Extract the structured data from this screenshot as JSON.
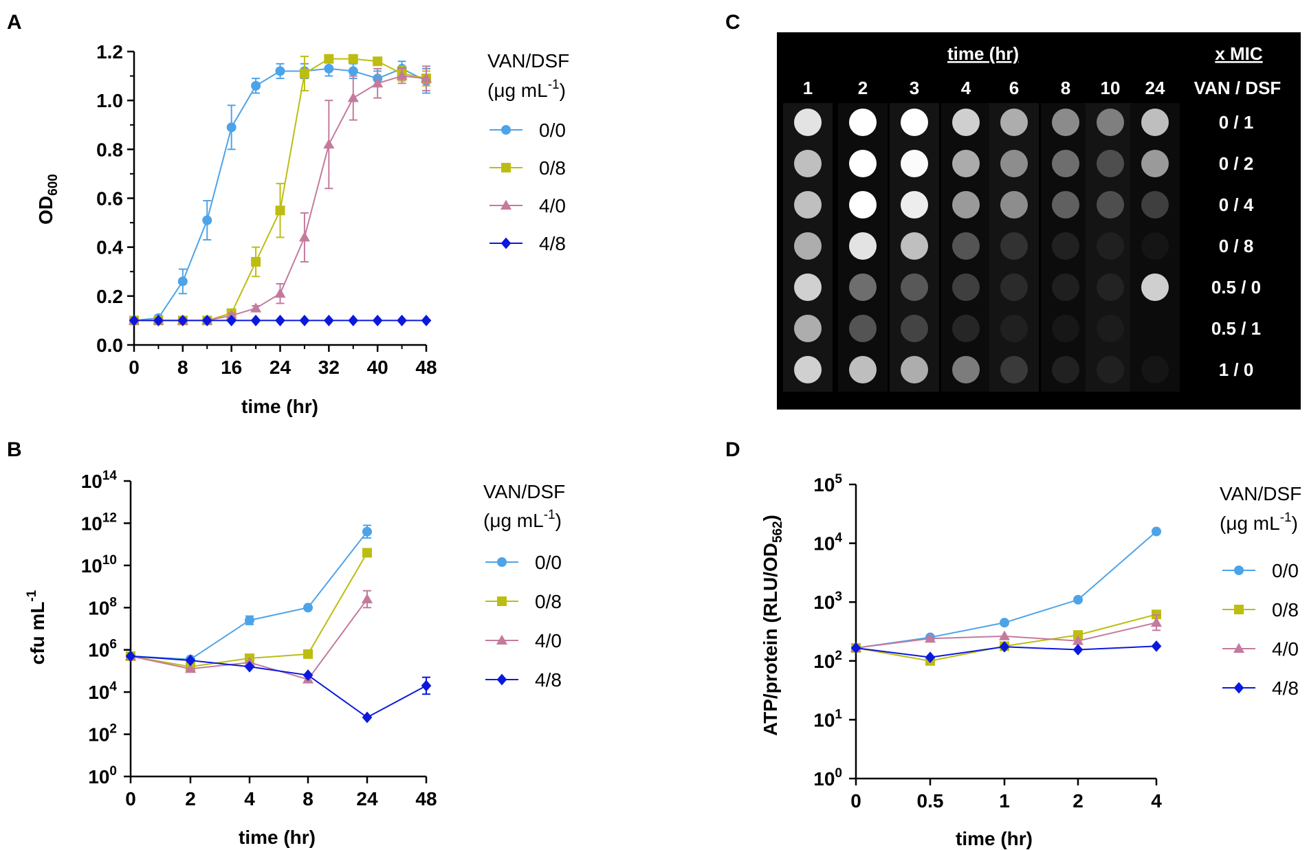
{
  "colors": {
    "c00": "#4da3e8",
    "c08": "#bdbd11",
    "c40": "#c47a9d",
    "c48": "#0b18dd"
  },
  "legend": {
    "title": "VAN/DSF",
    "unit_prefix": "(μg mL",
    "unit_exp": "-1",
    "unit_suffix": ")",
    "series_names": [
      "0/0",
      "0/8",
      "4/0",
      "4/8"
    ]
  },
  "panels": {
    "A": {
      "letter": "A",
      "ylabel_main": "OD",
      "ylabel_sub": "600",
      "xlabel": "time (hr)"
    },
    "B": {
      "letter": "B",
      "ylabel_main": "cfu mL",
      "ylabel_sup": "-1",
      "xlabel": "time (hr)"
    },
    "C": {
      "letter": "C"
    },
    "D": {
      "letter": "D",
      "ylabel_main": "ATP/protein (RLU/OD",
      "ylabel_sub": "562",
      "ylabel_end": ")",
      "xlabel": "time (hr)"
    }
  },
  "spot_assay": {
    "time_header": "time (hr)",
    "mic_header": "x MIC",
    "ratio_header": "VAN / DSF",
    "times": [
      "1",
      "2",
      "3",
      "4",
      "6",
      "8",
      "10",
      "24"
    ],
    "rows": [
      {
        "label": "0 / 1",
        "density": [
          0.85,
          1.0,
          1.0,
          0.8,
          0.7,
          0.6,
          0.55,
          0.75
        ]
      },
      {
        "label": "0 / 2",
        "density": [
          0.75,
          1.0,
          0.98,
          0.7,
          0.6,
          0.5,
          0.35,
          0.65
        ]
      },
      {
        "label": "0 / 4",
        "density": [
          0.75,
          1.0,
          0.9,
          0.65,
          0.6,
          0.45,
          0.35,
          0.3
        ]
      },
      {
        "label": "0 / 8",
        "density": [
          0.7,
          0.85,
          0.75,
          0.4,
          0.2,
          0.12,
          0.05,
          0.02
        ]
      },
      {
        "label": "0.5 / 0",
        "density": [
          0.8,
          0.5,
          0.4,
          0.3,
          0.15,
          0.1,
          0.08,
          0.8
        ]
      },
      {
        "label": "0.5 / 1",
        "density": [
          0.7,
          0.4,
          0.3,
          0.15,
          0.05,
          0.03,
          0.02,
          0.0
        ]
      },
      {
        "label": "1 / 0",
        "density": [
          0.8,
          0.75,
          0.7,
          0.55,
          0.25,
          0.12,
          0.06,
          0.02
        ]
      }
    ]
  },
  "chart_data": [
    {
      "panel": "A",
      "type": "line",
      "xlabel": "time (hr)",
      "ylabel": "OD600",
      "xlim": [
        0,
        48
      ],
      "ylim": [
        0,
        1.2
      ],
      "xticks": [
        0,
        8,
        16,
        24,
        32,
        40,
        48
      ],
      "xtick_labels": [
        "0",
        "8",
        "16",
        "24",
        "32",
        "40",
        "48"
      ],
      "yticks": [
        0,
        0.2,
        0.4,
        0.6,
        0.8,
        1.0,
        1.2
      ],
      "ytick_labels": [
        "0.0",
        "0.2",
        "0.4",
        "0.6",
        "0.8",
        "1.0",
        "1.2"
      ],
      "series": [
        {
          "name": "0/0",
          "marker": "circle",
          "x": [
            0,
            4,
            8,
            12,
            16,
            20,
            24,
            28,
            32,
            36,
            40,
            44,
            48
          ],
          "y": [
            0.1,
            0.11,
            0.26,
            0.51,
            0.89,
            1.06,
            1.12,
            1.12,
            1.13,
            1.12,
            1.09,
            1.13,
            1.08
          ],
          "err": [
            0.01,
            0.01,
            0.05,
            0.08,
            0.09,
            0.03,
            0.03,
            0.03,
            0.03,
            0.03,
            0.03,
            0.03,
            0.05
          ]
        },
        {
          "name": "0/8",
          "marker": "square",
          "x": [
            0,
            4,
            8,
            12,
            16,
            20,
            24,
            28,
            32,
            36,
            40,
            44,
            48
          ],
          "y": [
            0.1,
            0.1,
            0.1,
            0.1,
            0.13,
            0.34,
            0.55,
            1.11,
            1.17,
            1.17,
            1.16,
            1.11,
            1.09
          ],
          "err": [
            0.01,
            0.01,
            0.01,
            0.01,
            0.01,
            0.06,
            0.11,
            0.07,
            0.0,
            0.0,
            0.0,
            0.03,
            0.03
          ]
        },
        {
          "name": "4/0",
          "marker": "triangle",
          "x": [
            0,
            4,
            8,
            12,
            16,
            20,
            24,
            28,
            32,
            36,
            40,
            44,
            48
          ],
          "y": [
            0.1,
            0.1,
            0.1,
            0.1,
            0.12,
            0.15,
            0.21,
            0.44,
            0.82,
            1.01,
            1.07,
            1.1,
            1.09
          ],
          "err": [
            0.01,
            0.01,
            0.01,
            0.01,
            0.01,
            0.01,
            0.04,
            0.1,
            0.18,
            0.09,
            0.06,
            0.03,
            0.05
          ]
        },
        {
          "name": "4/8",
          "marker": "diamond",
          "x": [
            0,
            4,
            8,
            12,
            16,
            20,
            24,
            28,
            32,
            36,
            40,
            44,
            48
          ],
          "y": [
            0.1,
            0.1,
            0.1,
            0.1,
            0.1,
            0.1,
            0.1,
            0.1,
            0.1,
            0.1,
            0.1,
            0.1,
            0.1
          ],
          "err": [
            0,
            0,
            0,
            0,
            0,
            0,
            0,
            0,
            0,
            0,
            0,
            0,
            0
          ]
        }
      ]
    },
    {
      "panel": "B",
      "type": "line",
      "xlabel": "time (hr)",
      "ylabel": "cfu mL-1",
      "yscale": "log10",
      "x_categories": [
        "0",
        "2",
        "4",
        "8",
        "24",
        "48"
      ],
      "ylim_exp": [
        0,
        14
      ],
      "ytick_exps": [
        0,
        2,
        4,
        6,
        8,
        10,
        12,
        14
      ],
      "series": [
        {
          "name": "0/0",
          "marker": "circle",
          "x_index": [
            0,
            1,
            2,
            3,
            4
          ],
          "log10_y": [
            5.7,
            5.55,
            7.4,
            8.0,
            11.6
          ],
          "log10_err": [
            0,
            0,
            0.2,
            0,
            0.3
          ]
        },
        {
          "name": "0/8",
          "marker": "square",
          "x_index": [
            0,
            1,
            2,
            3,
            4
          ],
          "log10_y": [
            5.7,
            5.2,
            5.6,
            5.8,
            10.6
          ],
          "log10_err": [
            0,
            0,
            0,
            0,
            0
          ]
        },
        {
          "name": "4/0",
          "marker": "triangle",
          "x_index": [
            0,
            1,
            2,
            3,
            4
          ],
          "log10_y": [
            5.7,
            5.1,
            5.4,
            4.6,
            8.4
          ],
          "log10_err": [
            0,
            0,
            0,
            0,
            0.4
          ]
        },
        {
          "name": "4/8",
          "marker": "diamond",
          "x_index": [
            0,
            1,
            2,
            3,
            4,
            5
          ],
          "log10_y": [
            5.7,
            5.5,
            5.2,
            4.8,
            2.8,
            4.3
          ],
          "log10_err": [
            0,
            0,
            0,
            0,
            0,
            0.4
          ]
        }
      ]
    },
    {
      "panel": "D",
      "type": "line",
      "xlabel": "time (hr)",
      "ylabel": "ATP/protein (RLU/OD562)",
      "yscale": "log10",
      "x_categories": [
        "0",
        "0.5",
        "1",
        "2",
        "4"
      ],
      "ylim_exp": [
        0,
        5
      ],
      "ytick_exps": [
        0,
        1,
        2,
        3,
        4,
        5
      ],
      "series": [
        {
          "name": "0/0",
          "marker": "circle",
          "x_index": [
            0,
            1,
            2,
            3,
            4
          ],
          "log10_y": [
            2.22,
            2.4,
            2.65,
            3.04,
            4.2
          ],
          "log10_err": [
            0,
            0,
            0,
            0,
            0
          ]
        },
        {
          "name": "0/8",
          "marker": "square",
          "x_index": [
            0,
            1,
            2,
            3,
            4
          ],
          "log10_y": [
            2.22,
            2.0,
            2.25,
            2.44,
            2.79
          ],
          "log10_err": [
            0,
            0,
            0,
            0,
            0
          ]
        },
        {
          "name": "4/0",
          "marker": "triangle",
          "x_index": [
            0,
            1,
            2,
            3,
            4
          ],
          "log10_y": [
            2.22,
            2.38,
            2.42,
            2.34,
            2.65
          ],
          "log10_err": [
            0,
            0,
            0,
            0,
            0.13
          ]
        },
        {
          "name": "4/8",
          "marker": "diamond",
          "x_index": [
            0,
            1,
            2,
            3,
            4
          ],
          "log10_y": [
            2.22,
            2.06,
            2.24,
            2.19,
            2.25
          ],
          "log10_err": [
            0,
            0,
            0,
            0,
            0
          ]
        }
      ]
    }
  ]
}
